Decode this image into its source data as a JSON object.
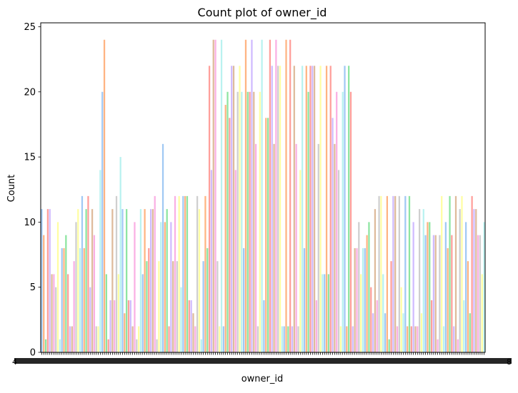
{
  "chart_data": {
    "type": "bar",
    "title": "Count plot of owner_id",
    "xlabel": "owner_id",
    "ylabel": "Count",
    "ylim": [
      0,
      25.3
    ],
    "yticks": [
      0,
      5,
      10,
      15,
      20,
      25
    ],
    "x_tick_labels": {
      "first": "4",
      "last": "8"
    },
    "grid": false,
    "legend": "none",
    "palette": [
      "#a1c9f4",
      "#ffb482",
      "#8de5a1",
      "#ff9f9b",
      "#d0bbff",
      "#debb9b",
      "#fab0e4",
      "#cfcfcf",
      "#fffea3",
      "#b9f2f0"
    ],
    "values": [
      11,
      9,
      1,
      11,
      11,
      6,
      6,
      5,
      10,
      1,
      8,
      8,
      9,
      6,
      2,
      2,
      7,
      10,
      11,
      8,
      12,
      8,
      11,
      12,
      5,
      11,
      9,
      2,
      2,
      14,
      20,
      24,
      6,
      1,
      4,
      11,
      4,
      12,
      6,
      15,
      11,
      3,
      11,
      4,
      4,
      2,
      10,
      1,
      2,
      11,
      6,
      11,
      7,
      8,
      11,
      11,
      12,
      1,
      7,
      10,
      16,
      10,
      11,
      2,
      10,
      7,
      12,
      7,
      12,
      5,
      12,
      12,
      12,
      4,
      4,
      3,
      2,
      12,
      11,
      1,
      7,
      12,
      8,
      22,
      14,
      24,
      24,
      7,
      2,
      24,
      2,
      19,
      20,
      18,
      22,
      22,
      14,
      20,
      22,
      20,
      8,
      24,
      20,
      20,
      24,
      20,
      16,
      2,
      20,
      24,
      4,
      18,
      18,
      24,
      22,
      16,
      24,
      22,
      22,
      2,
      2,
      24,
      2,
      24,
      2,
      22,
      16,
      2,
      14,
      22,
      8,
      22,
      20,
      22,
      22,
      22,
      4,
      16,
      22,
      6,
      6,
      22,
      6,
      22,
      18,
      16,
      20,
      14,
      2,
      20,
      22,
      2,
      22,
      20,
      2,
      8,
      8,
      10,
      6,
      8,
      8,
      9,
      10,
      5,
      3,
      11,
      4,
      12,
      12,
      6,
      3,
      12,
      1,
      7,
      12,
      12,
      2,
      12,
      5,
      3,
      12,
      2,
      12,
      2,
      10,
      2,
      2,
      11,
      3,
      11,
      9,
      10,
      10,
      4,
      9,
      9,
      1,
      9,
      12,
      2,
      10,
      8,
      12,
      9,
      2,
      12,
      1,
      11,
      12,
      4,
      10,
      7,
      3,
      12,
      11,
      11,
      9,
      9,
      6,
      10
    ]
  }
}
